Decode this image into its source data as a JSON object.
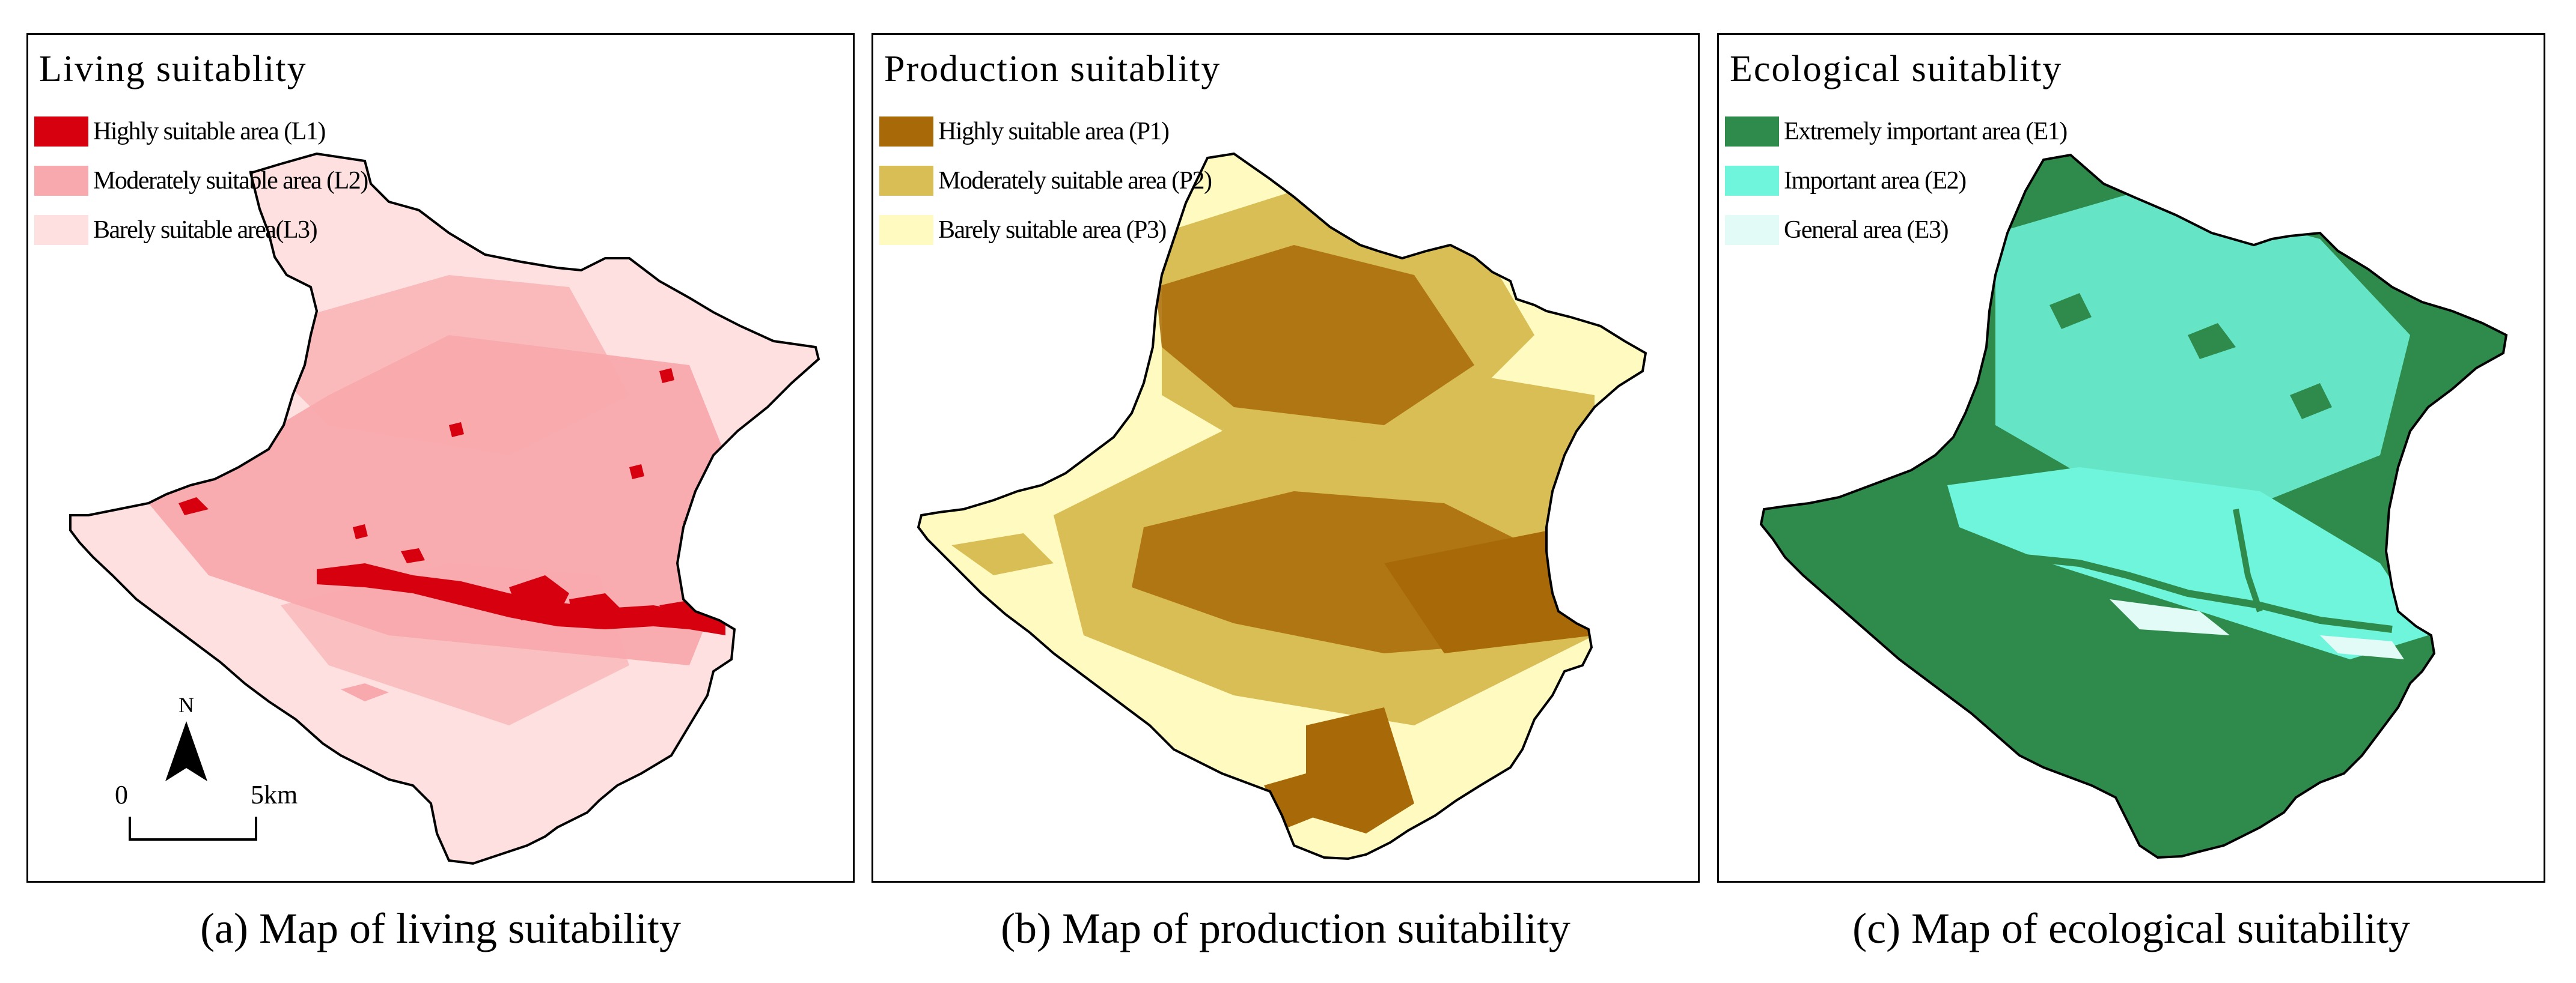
{
  "panels": [
    {
      "id": "a",
      "title": "Living suitablity",
      "legend": [
        {
          "label": "Highly suitable area (L1)",
          "color": "#d7000f"
        },
        {
          "label": "Moderately suitable area (L2)",
          "color": "#f8a9ad"
        },
        {
          "label": "Barely suitable area(L3)",
          "color": "#fde0df"
        }
      ],
      "caption": "(a) Map of living suitability"
    },
    {
      "id": "b",
      "title": "Production suitablity",
      "legend": [
        {
          "label": "Highly suitable area (P1)",
          "color": "#a86a08"
        },
        {
          "label": "Moderately suitable area (P2)",
          "color": "#d9bd55"
        },
        {
          "label": "Barely suitable area (P3)",
          "color": "#fefac0"
        }
      ],
      "caption": "(b) Map of production suitability"
    },
    {
      "id": "c",
      "title": "Ecological suitablity",
      "legend": [
        {
          "label": "Extremely important area (E1)",
          "color": "#2e8b4c"
        },
        {
          "label": "Important area (E2)",
          "color": "#6ff5dc"
        },
        {
          "label": "General area (E3)",
          "color": "#e2fbf6"
        }
      ],
      "caption": "(c) Map of ecological suitability"
    }
  ],
  "north_arrow": {
    "label": "N"
  },
  "scale_bar": {
    "start": "0",
    "end": "5km"
  }
}
